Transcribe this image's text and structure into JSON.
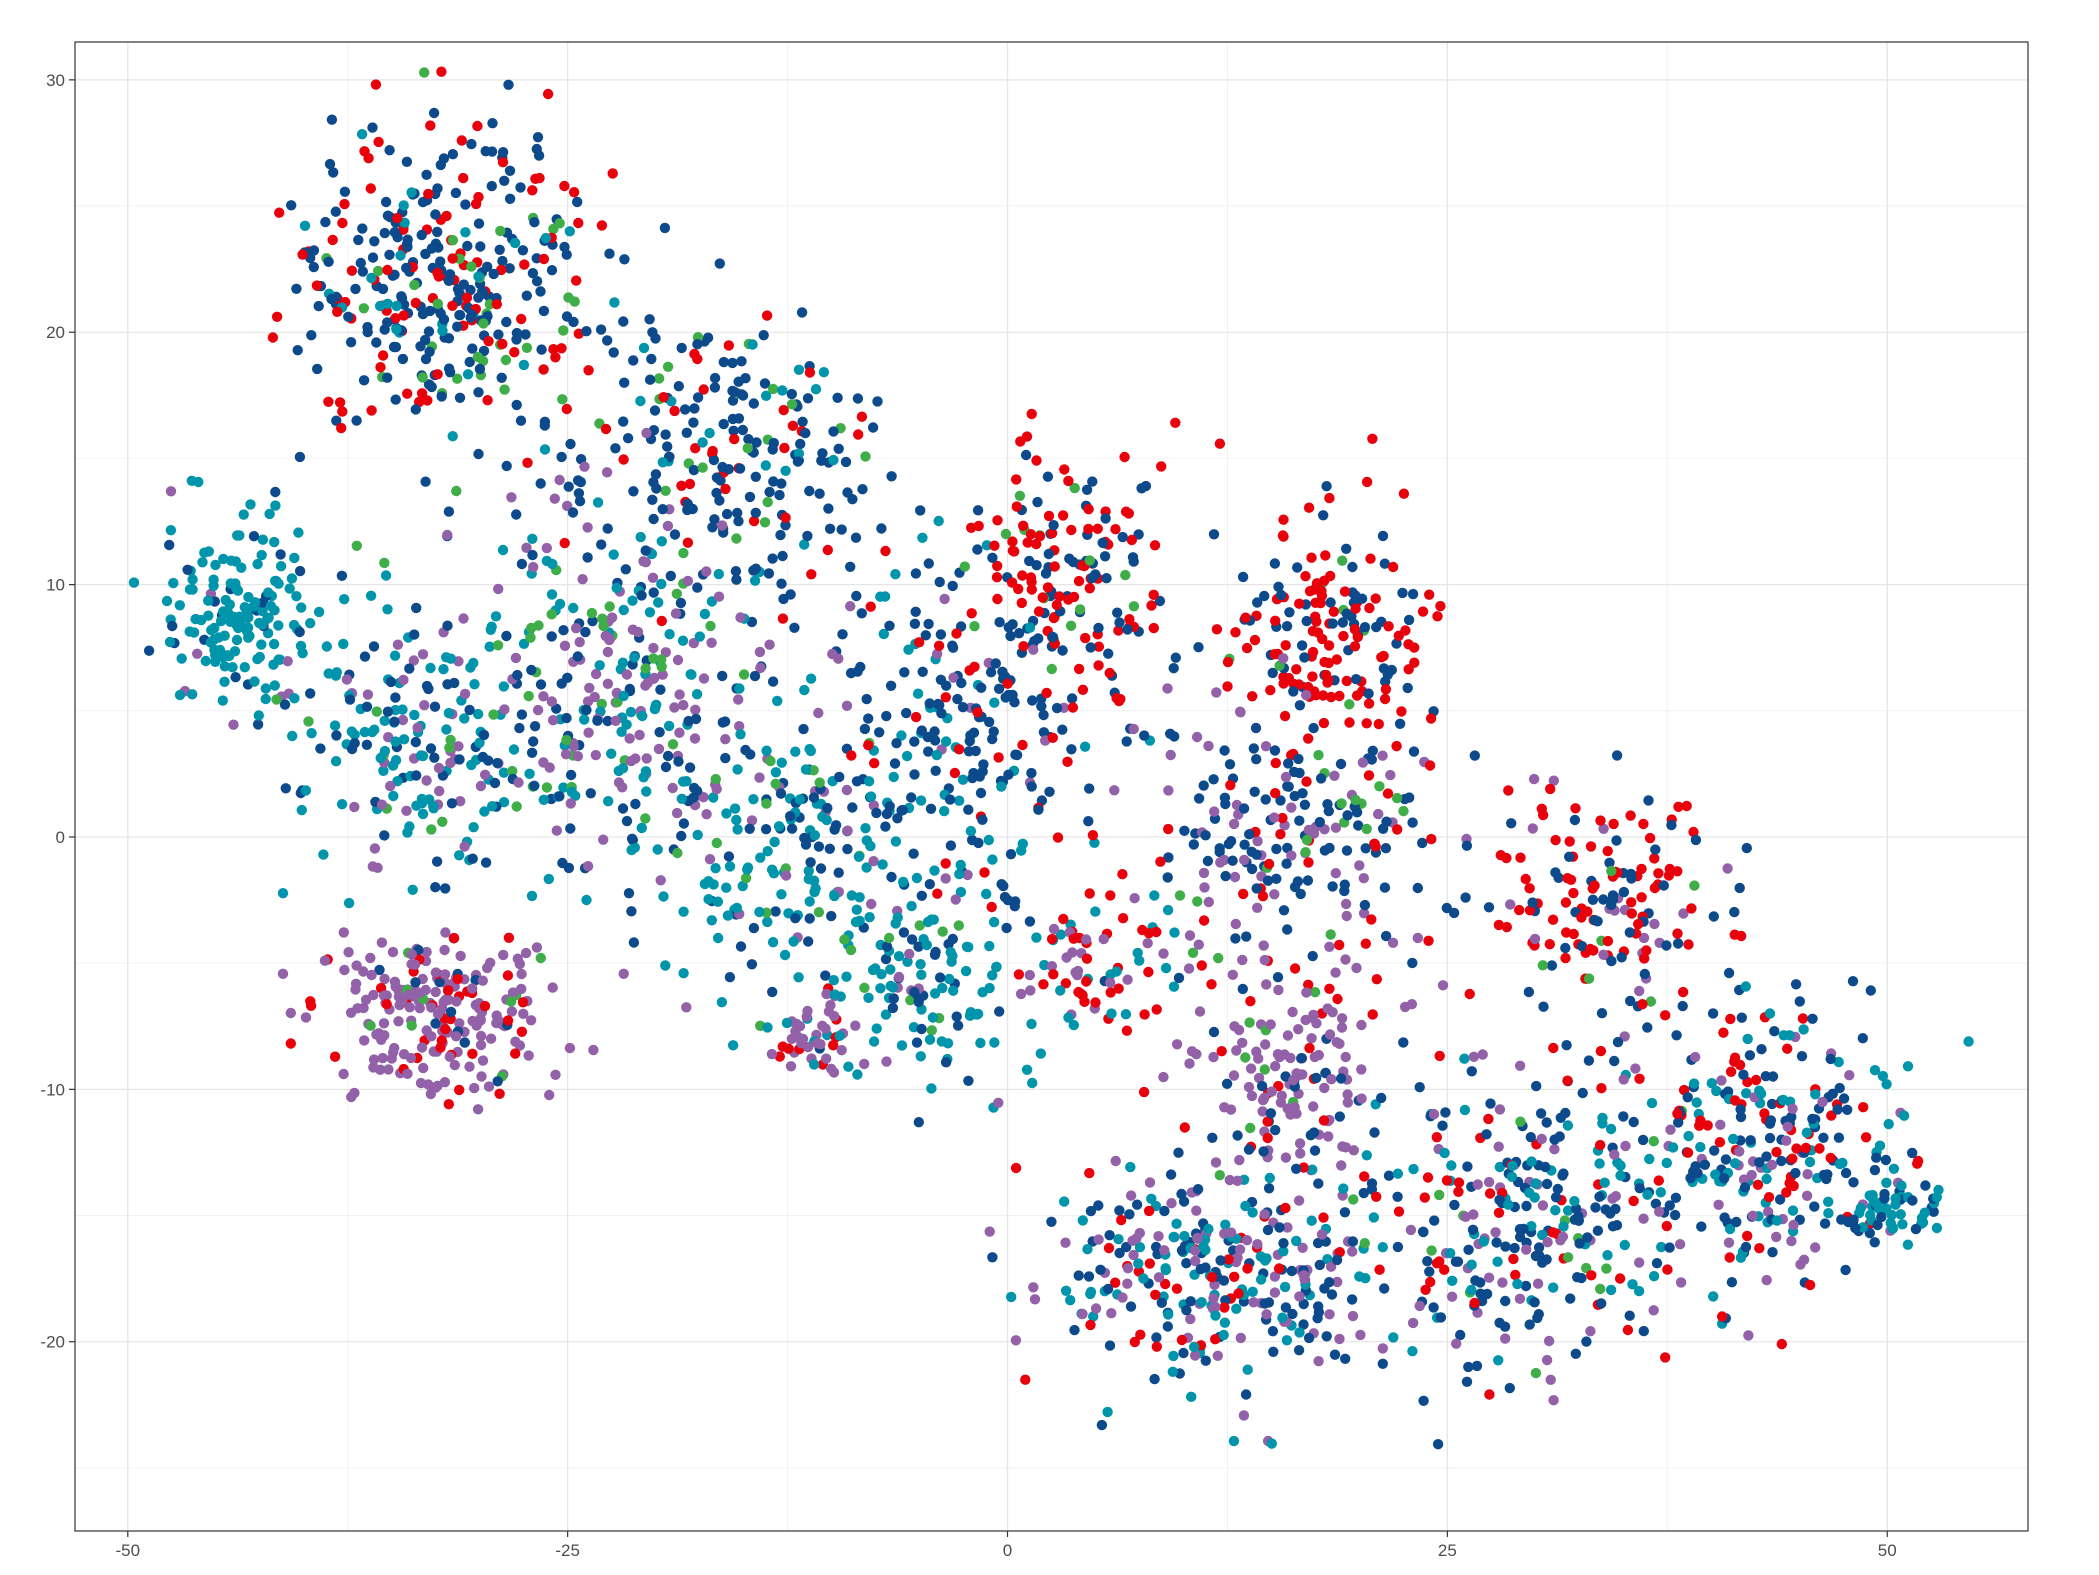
{
  "chart_data": {
    "type": "scatter",
    "title": "",
    "xlabel": "",
    "ylabel": "",
    "xlim": [
      -53,
      58
    ],
    "ylim": [
      -27.5,
      31.5
    ],
    "x_ticks": [
      -50,
      -25,
      0,
      25,
      50
    ],
    "x_tick_labels": [
      "-50",
      "-25",
      "0",
      "25",
      "50"
    ],
    "y_ticks": [
      -20,
      -10,
      0,
      10,
      20,
      30
    ],
    "y_tick_labels": [
      "-20",
      "-10",
      "0",
      "10",
      "20",
      "30"
    ],
    "grid": true,
    "legend": "none",
    "point_count_approx": 3800,
    "series": [
      {
        "color": "#0d4a8c",
        "approx_share": 0.4
      },
      {
        "color": "#e8000b",
        "approx_share": 0.17
      },
      {
        "color": "#0095ab",
        "approx_share": 0.19
      },
      {
        "color": "#9261a8",
        "approx_share": 0.18
      },
      {
        "color": "#3fae49",
        "approx_share": 0.06
      }
    ],
    "clusters": [
      {
        "center": [
          -32,
          22
        ],
        "spread": [
          6,
          4
        ],
        "mix": {
          "#0d4a8c": 0.55,
          "#e8000b": 0.3,
          "#0095ab": 0.08,
          "#3fae49": 0.07
        },
        "n": 380
      },
      {
        "center": [
          -16,
          15
        ],
        "spread": [
          6,
          4
        ],
        "mix": {
          "#0d4a8c": 0.7,
          "#e8000b": 0.12,
          "#0095ab": 0.1,
          "#3fae49": 0.08
        },
        "n": 220
      },
      {
        "center": [
          -44,
          9
        ],
        "spread": [
          3,
          2.5
        ],
        "mix": {
          "#0095ab": 0.8,
          "#0d4a8c": 0.15,
          "#9261a8": 0.05
        },
        "n": 160
      },
      {
        "center": [
          -34,
          4
        ],
        "spread": [
          5,
          4
        ],
        "mix": {
          "#0095ab": 0.55,
          "#0d4a8c": 0.25,
          "#9261a8": 0.15,
          "#3fae49": 0.05
        },
        "n": 200
      },
      {
        "center": [
          -22,
          6
        ],
        "spread": [
          6,
          5
        ],
        "mix": {
          "#9261a8": 0.35,
          "#0d4a8c": 0.3,
          "#0095ab": 0.25,
          "#3fae49": 0.1
        },
        "n": 300
      },
      {
        "center": [
          -12,
          0
        ],
        "spread": [
          6,
          4
        ],
        "mix": {
          "#0095ab": 0.5,
          "#0d4a8c": 0.3,
          "#9261a8": 0.12,
          "#3fae49": 0.08
        },
        "n": 220
      },
      {
        "center": [
          -32,
          -7
        ],
        "spread": [
          5,
          2.2
        ],
        "mix": {
          "#9261a8": 0.7,
          "#e8000b": 0.2,
          "#0d4a8c": 0.05,
          "#3fae49": 0.05
        },
        "n": 230
      },
      {
        "center": [
          -11,
          -8
        ],
        "spread": [
          2.5,
          1.2
        ],
        "mix": {
          "#9261a8": 0.7,
          "#e8000b": 0.15,
          "#0095ab": 0.1,
          "#3fae49": 0.05
        },
        "n": 50
      },
      {
        "center": [
          -3,
          5
        ],
        "spread": [
          5,
          5
        ],
        "mix": {
          "#0d4a8c": 0.65,
          "#0095ab": 0.15,
          "#e8000b": 0.1,
          "#9261a8": 0.1
        },
        "n": 200
      },
      {
        "center": [
          3,
          10
        ],
        "spread": [
          4,
          3.5
        ],
        "mix": {
          "#e8000b": 0.5,
          "#0d4a8c": 0.4,
          "#3fae49": 0.1
        },
        "n": 170
      },
      {
        "center": [
          -4,
          -5
        ],
        "spread": [
          4,
          3
        ],
        "mix": {
          "#0095ab": 0.6,
          "#0d4a8c": 0.25,
          "#9261a8": 0.1,
          "#3fae49": 0.05
        },
        "n": 140
      },
      {
        "center": [
          5,
          -5
        ],
        "spread": [
          3,
          2
        ],
        "mix": {
          "#e8000b": 0.5,
          "#9261a8": 0.3,
          "#0095ab": 0.2
        },
        "n": 70
      },
      {
        "center": [
          18,
          8
        ],
        "spread": [
          4,
          3.5
        ],
        "mix": {
          "#e8000b": 0.65,
          "#0d4a8c": 0.3,
          "#3fae49": 0.05
        },
        "n": 180
      },
      {
        "center": [
          16,
          0
        ],
        "spread": [
          6,
          3.5
        ],
        "mix": {
          "#0d4a8c": 0.45,
          "#e8000b": 0.2,
          "#9261a8": 0.25,
          "#3fae49": 0.1
        },
        "n": 220
      },
      {
        "center": [
          34,
          -3
        ],
        "spread": [
          5,
          3
        ],
        "mix": {
          "#e8000b": 0.5,
          "#0d4a8c": 0.35,
          "#9261a8": 0.1,
          "#3fae49": 0.05
        },
        "n": 170
      },
      {
        "center": [
          16,
          -9
        ],
        "spread": [
          4,
          2.5
        ],
        "mix": {
          "#9261a8": 0.65,
          "#e8000b": 0.15,
          "#0d4a8c": 0.15,
          "#3fae49": 0.05
        },
        "n": 140
      },
      {
        "center": [
          12,
          -17
        ],
        "spread": [
          7,
          3.5
        ],
        "mix": {
          "#0d4a8c": 0.35,
          "#0095ab": 0.25,
          "#9261a8": 0.25,
          "#e8000b": 0.15
        },
        "n": 330
      },
      {
        "center": [
          30,
          -15
        ],
        "spread": [
          7,
          4
        ],
        "mix": {
          "#0d4a8c": 0.45,
          "#9261a8": 0.2,
          "#0095ab": 0.2,
          "#e8000b": 0.1,
          "#3fae49": 0.05
        },
        "n": 330
      },
      {
        "center": [
          44,
          -12
        ],
        "spread": [
          5,
          3.5
        ],
        "mix": {
          "#0d4a8c": 0.35,
          "#e8000b": 0.25,
          "#0095ab": 0.25,
          "#9261a8": 0.15
        },
        "n": 250
      },
      {
        "center": [
          50,
          -15
        ],
        "spread": [
          2,
          1
        ],
        "mix": {
          "#0095ab": 0.7,
          "#0d4a8c": 0.3
        },
        "n": 50
      }
    ]
  }
}
